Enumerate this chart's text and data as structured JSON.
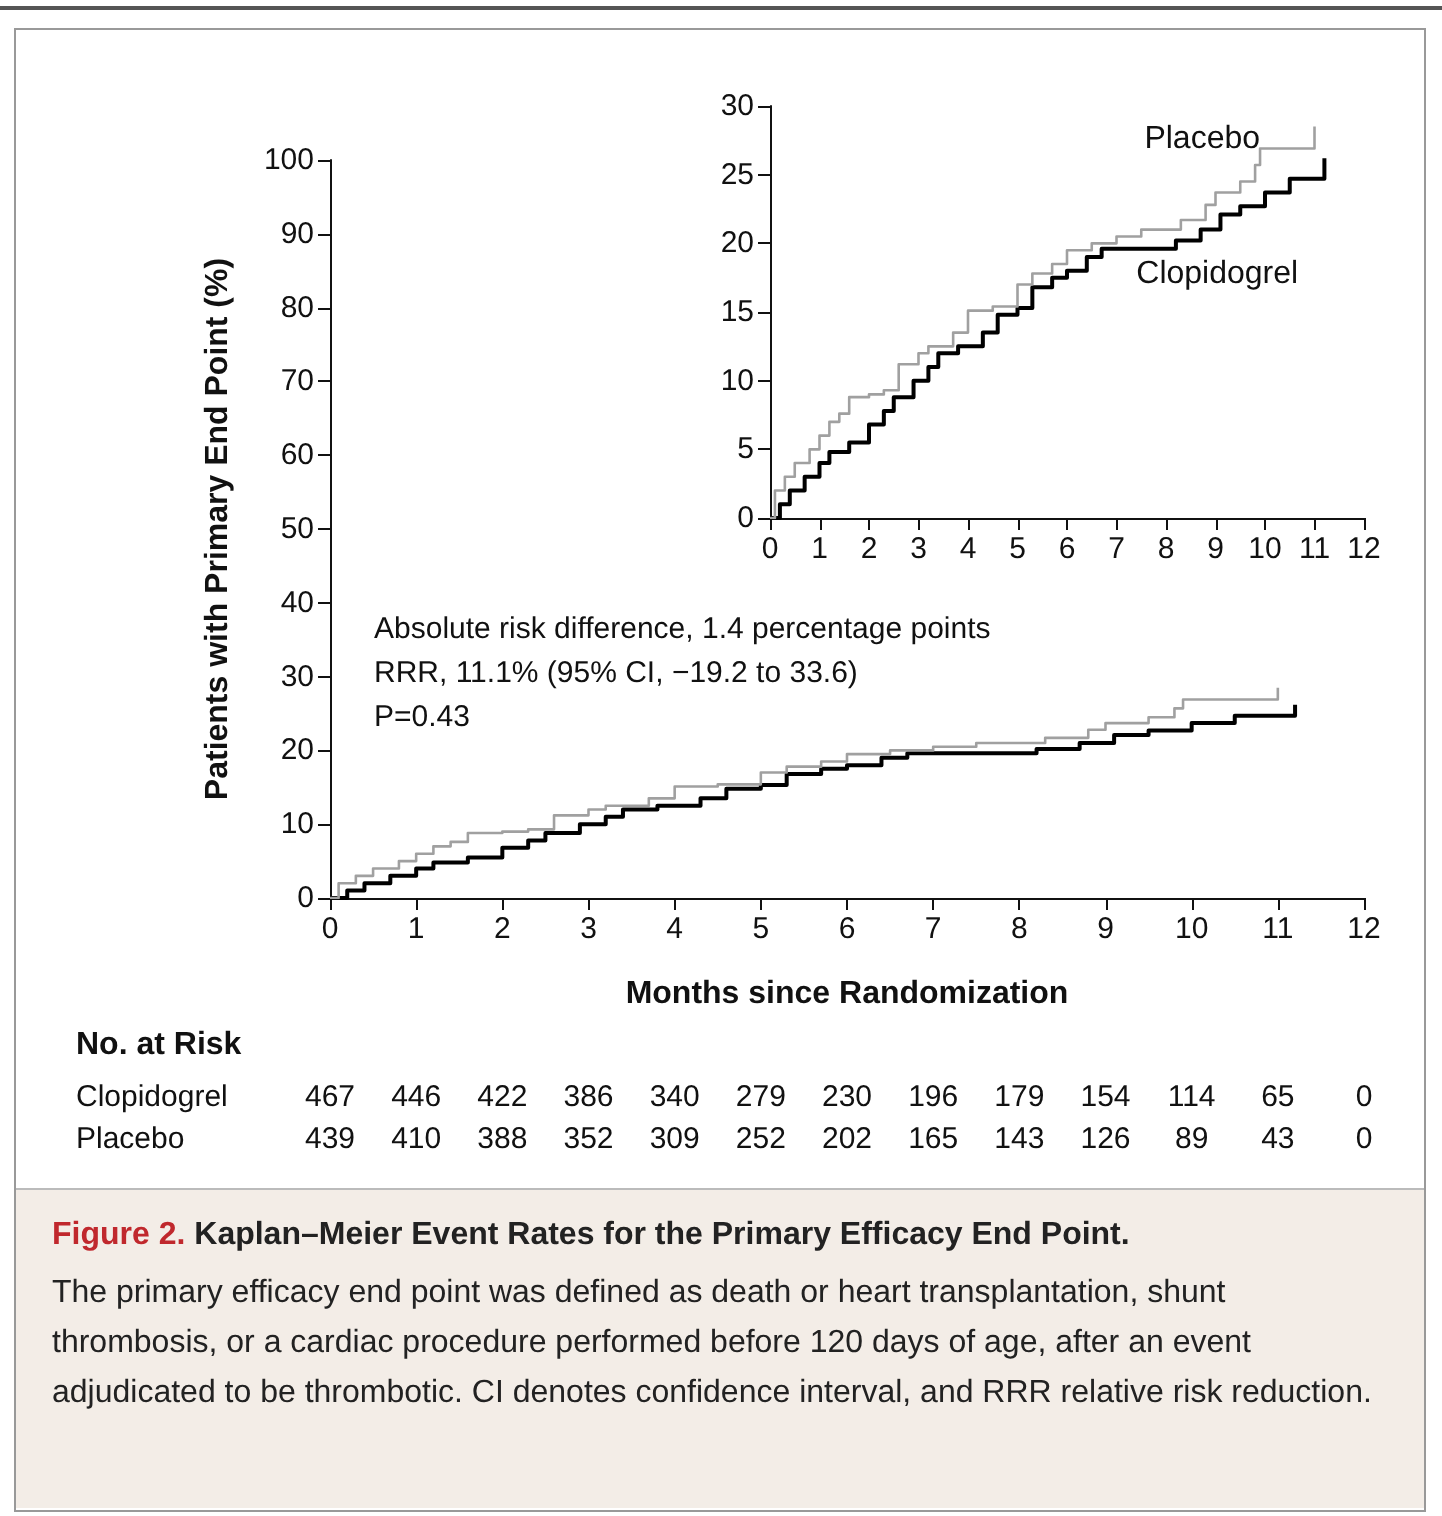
{
  "chart_data": [
    {
      "type": "step",
      "title": "Figure 2. Kaplan–Meier Event Rates for the Primary Efficacy End Point.",
      "subtitle": "The primary efficacy end point was defined as death or heart transplantation, shunt thrombosis, or a cardiac procedure performed before 120 days of age, after an event adjudicated to be thrombotic. CI denotes confidence interval, and RRR relative risk reduction.",
      "xlabel": "Months since Randomization",
      "ylabel": "Patients with Primary End Point (%)",
      "annotations": [
        "Absolute risk difference, 1.4 percentage points",
        "RRR, 11.1% (95% CI, −19.2 to 33.6)",
        "P=0.43",
        "No. at Risk",
        "Clopidogrel 467 446 422 386 340 279 230 196 179 154 114 65 0",
        "Placebo 439 410 388 352 309 252 202 165 143 126 89 43 0"
      ],
      "xlim": [
        0,
        12
      ],
      "xticks": [
        0,
        1,
        2,
        3,
        4,
        5,
        6,
        7,
        8,
        9,
        10,
        11,
        12
      ],
      "ylim": [
        0,
        100
      ],
      "yticks": [
        0,
        10,
        20,
        30,
        40,
        50,
        60,
        70,
        80,
        90,
        100
      ],
      "grid": false,
      "legend": false,
      "marker": "none",
      "series": [
        {
          "color": "#a0a0a0",
          "x": [
            0,
            0.1,
            0.3,
            0.5,
            0.8,
            1.0,
            1.2,
            1.4,
            1.6,
            2.0,
            2.3,
            2.6,
            3.0,
            3.2,
            3.7,
            4.0,
            4.5,
            5.0,
            5.3,
            5.7,
            6.0,
            6.5,
            7.0,
            7.5,
            8.3,
            8.8,
            9.0,
            9.5,
            9.8,
            9.9,
            11.0,
            11.0
          ],
          "values": [
            0,
            2,
            3,
            4,
            5,
            6,
            7,
            7.6,
            8.8,
            9.0,
            9.3,
            11.2,
            12,
            12.5,
            13.5,
            15.1,
            15.4,
            17,
            17.8,
            18.5,
            19.5,
            20,
            20.5,
            21,
            21.7,
            22.8,
            23.7,
            24.5,
            25.7,
            26.9,
            26.9,
            28.5
          ]
        },
        {
          "color": "#000000",
          "x": [
            0,
            0.2,
            0.4,
            0.7,
            1.0,
            1.2,
            1.6,
            2.0,
            2.3,
            2.5,
            2.9,
            3.2,
            3.4,
            3.8,
            4.3,
            4.6,
            5.0,
            5.3,
            5.7,
            6.0,
            6.4,
            6.7,
            8.0,
            8.2,
            8.7,
            9.1,
            9.5,
            10.0,
            10.5,
            11.2,
            11.2
          ],
          "values": [
            0,
            1,
            2,
            3,
            4,
            4.8,
            5.5,
            6.8,
            7.8,
            8.8,
            10,
            11,
            12,
            12.5,
            13.5,
            14.8,
            15.3,
            16.8,
            17.5,
            18.0,
            19,
            19.6,
            19.6,
            20.2,
            21,
            22.1,
            22.7,
            23.7,
            24.7,
            24.7,
            26.2
          ]
        }
      ]
    },
    {
      "type": "step",
      "xlim": [
        0,
        12
      ],
      "xticks": [
        0,
        1,
        2,
        3,
        4,
        5,
        6,
        7,
        8,
        9,
        10,
        11,
        12
      ],
      "ylim": [
        0,
        30
      ],
      "yticks": [
        0,
        5,
        10,
        15,
        20,
        25,
        30
      ],
      "grid": false,
      "legend": false,
      "marker": "none",
      "series": [
        {
          "name": "Placebo",
          "color": "#a0a0a0",
          "x": [
            0,
            0.1,
            0.3,
            0.5,
            0.8,
            1.0,
            1.2,
            1.4,
            1.6,
            2.0,
            2.3,
            2.6,
            3.0,
            3.2,
            3.7,
            4.0,
            4.5,
            5.0,
            5.3,
            5.7,
            6.0,
            6.5,
            7.0,
            7.5,
            8.3,
            8.8,
            9.0,
            9.5,
            9.8,
            9.9,
            11.0,
            11.0
          ],
          "values": [
            0,
            2,
            3,
            4,
            5,
            6,
            7,
            7.6,
            8.8,
            9.0,
            9.3,
            11.2,
            12,
            12.5,
            13.5,
            15.1,
            15.4,
            17,
            17.8,
            18.5,
            19.5,
            20,
            20.5,
            21,
            21.7,
            22.8,
            23.7,
            24.5,
            25.7,
            26.9,
            26.9,
            28.5
          ]
        },
        {
          "name": "Clopidogrel",
          "color": "#000000",
          "x": [
            0,
            0.2,
            0.4,
            0.7,
            1.0,
            1.2,
            1.6,
            2.0,
            2.3,
            2.5,
            2.9,
            3.2,
            3.4,
            3.8,
            4.3,
            4.6,
            5.0,
            5.3,
            5.7,
            6.0,
            6.4,
            6.7,
            8.0,
            8.2,
            8.7,
            9.1,
            9.5,
            10.0,
            10.5,
            11.2,
            11.2
          ],
          "values": [
            0,
            1,
            2,
            3,
            4,
            4.8,
            5.5,
            6.8,
            7.8,
            8.8,
            10,
            11,
            12,
            12.5,
            13.5,
            14.8,
            15.3,
            16.8,
            17.5,
            18.0,
            19,
            19.6,
            19.6,
            20.2,
            21,
            22.1,
            22.7,
            23.7,
            24.7,
            24.7,
            26.2
          ]
        }
      ]
    }
  ]
}
